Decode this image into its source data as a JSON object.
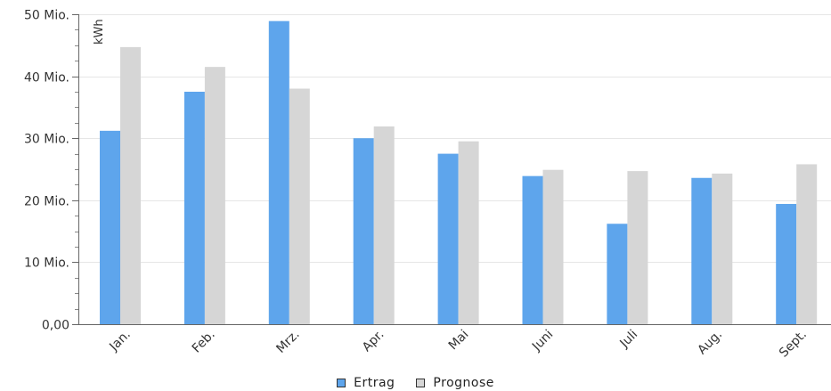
{
  "chart_data": {
    "type": "bar",
    "title": "",
    "xlabel": "",
    "ylabel": "kWh",
    "ylim": [
      0,
      50000000
    ],
    "yticks": [
      {
        "value": 0,
        "label": "0,00"
      },
      {
        "value": 10000000,
        "label": "10 Mio."
      },
      {
        "value": 20000000,
        "label": "20 Mio."
      },
      {
        "value": 30000000,
        "label": "30 Mio."
      },
      {
        "value": 40000000,
        "label": "40 Mio."
      },
      {
        "value": 50000000,
        "label": "50 Mio."
      }
    ],
    "grid": true,
    "legend_position": "bottom",
    "categories": [
      "Jan.",
      "Feb.",
      "Mrz.",
      "Apr.",
      "Mai",
      "Juni",
      "Juli",
      "Aug.",
      "Sept."
    ],
    "series": [
      {
        "name": "Ertrag",
        "color": "#5ea5ec",
        "values": [
          31200000,
          37500000,
          48900000,
          30000000,
          27500000,
          23900000,
          16200000,
          23600000,
          19400000
        ]
      },
      {
        "name": "Prognose",
        "color": "#d6d6d6",
        "values": [
          44700000,
          41500000,
          38000000,
          31900000,
          29500000,
          24900000,
          24700000,
          24300000,
          25800000
        ]
      }
    ]
  }
}
